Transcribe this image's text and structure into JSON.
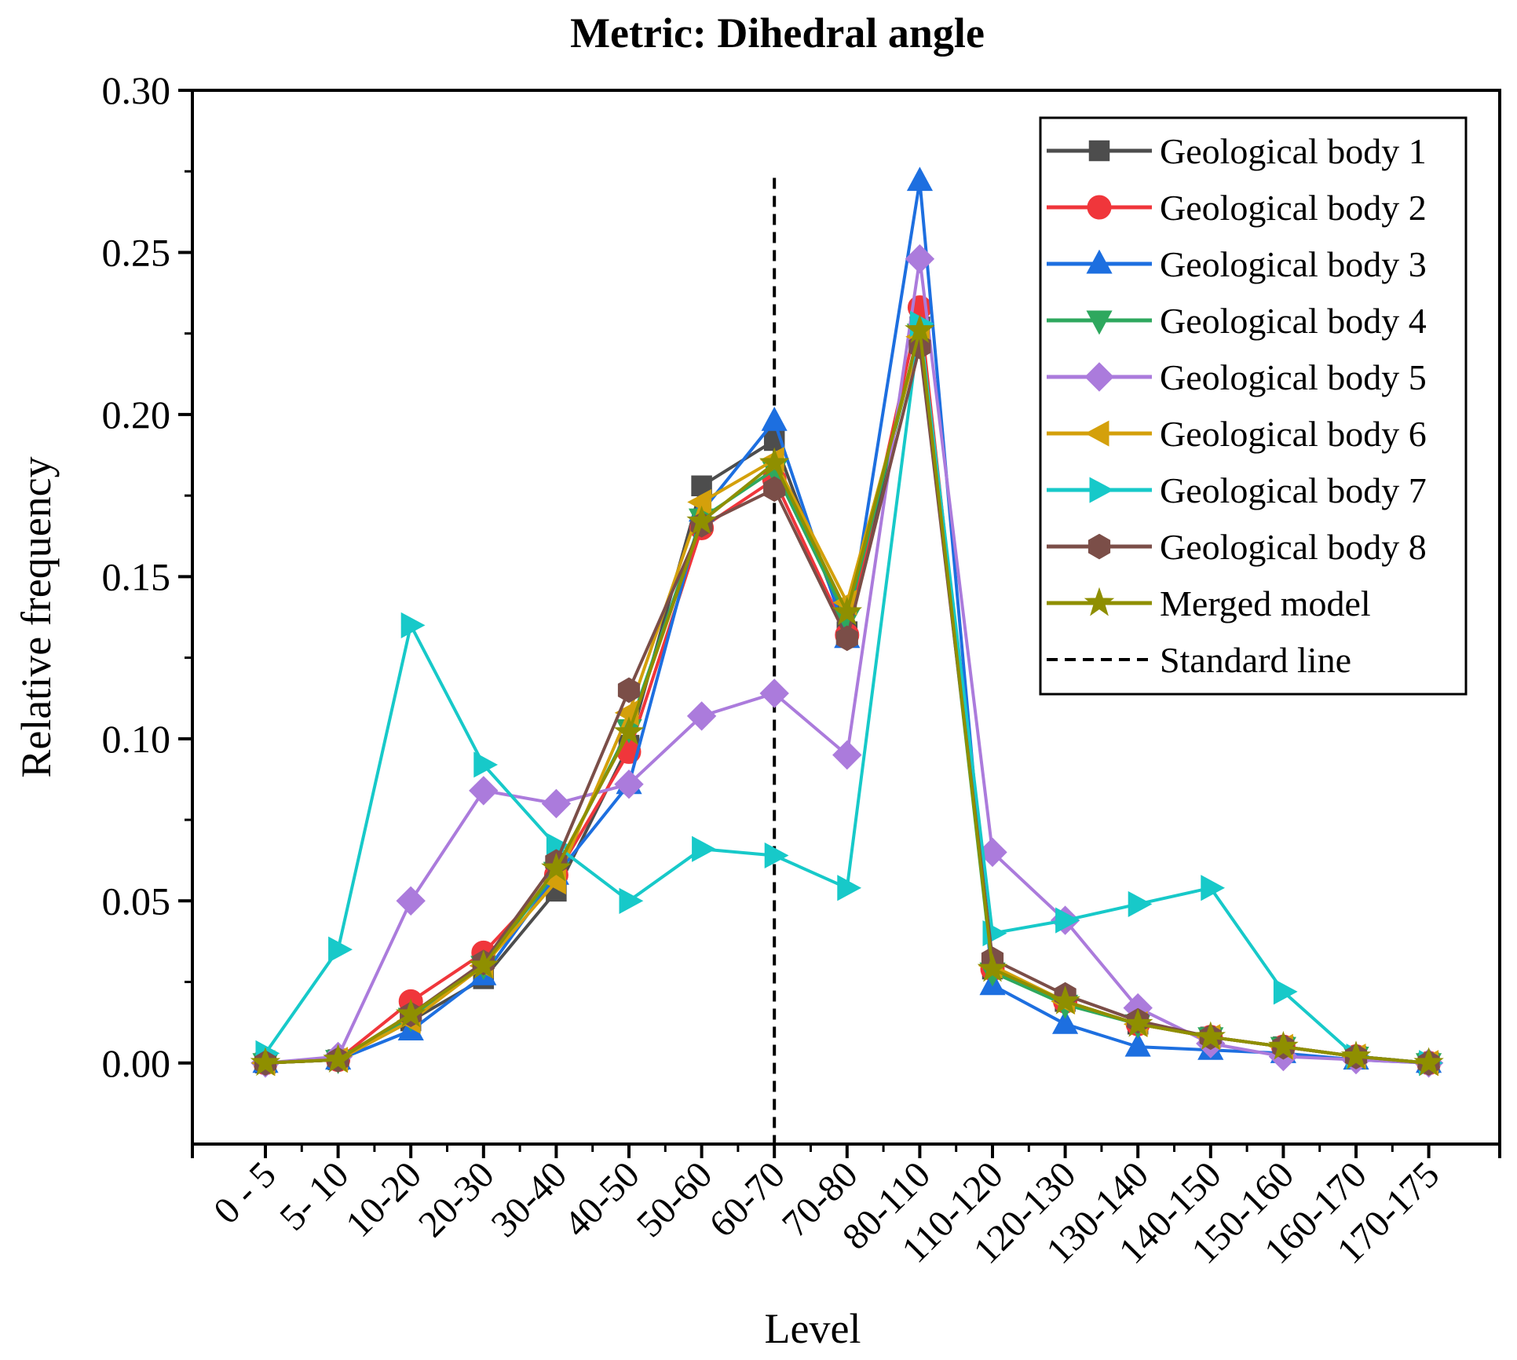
{
  "chart_data": {
    "type": "line",
    "title": "Metric: Dihedral angle",
    "xlabel": "Level",
    "ylabel": "Relative frequency",
    "ylim": [
      -0.025,
      0.3
    ],
    "yticks": [
      "0.00",
      "0.05",
      "0.10",
      "0.15",
      "0.20",
      "0.25",
      "0.30"
    ],
    "grid": false,
    "legend_position": "top-right",
    "categories": [
      "0 - 5",
      "5- 10",
      "10-20",
      "20-30",
      "30-40",
      "40-50",
      "50-60",
      "60-70",
      "70-80",
      "80-110",
      "110-120",
      "120-130",
      "130-140",
      "140-150",
      "150-160",
      "160-170",
      "170-175"
    ],
    "series": [
      {
        "name": "Geological body 1",
        "color": "#4d4d4d",
        "marker": "square",
        "values": [
          0.0,
          0.001,
          0.013,
          0.026,
          0.053,
          0.098,
          0.178,
          0.192,
          0.133,
          0.227,
          0.029,
          0.019,
          0.012,
          0.008,
          0.005,
          0.002,
          0.0
        ]
      },
      {
        "name": "Geological body 2",
        "color": "#f0363b",
        "marker": "circle",
        "values": [
          0.0,
          0.001,
          0.019,
          0.034,
          0.058,
          0.096,
          0.165,
          0.18,
          0.132,
          0.233,
          0.029,
          0.019,
          0.012,
          0.008,
          0.005,
          0.002,
          0.0
        ]
      },
      {
        "name": "Geological body 3",
        "color": "#1d6fe0",
        "marker": "triangle-up",
        "values": [
          0.0,
          0.001,
          0.01,
          0.027,
          0.058,
          0.086,
          0.17,
          0.198,
          0.131,
          0.272,
          0.024,
          0.012,
          0.005,
          0.004,
          0.003,
          0.001,
          0.0
        ]
      },
      {
        "name": "Geological body 4",
        "color": "#2ea85e",
        "marker": "triangle-down",
        "values": [
          0.0,
          0.001,
          0.014,
          0.03,
          0.059,
          0.103,
          0.168,
          0.183,
          0.137,
          0.225,
          0.028,
          0.018,
          0.012,
          0.008,
          0.005,
          0.002,
          0.0
        ]
      },
      {
        "name": "Geological body 5",
        "color": "#ab7bdc",
        "marker": "diamond",
        "values": [
          0.0,
          0.002,
          0.05,
          0.084,
          0.08,
          0.086,
          0.107,
          0.114,
          0.095,
          0.248,
          0.065,
          0.044,
          0.017,
          0.006,
          0.002,
          0.001,
          0.0
        ]
      },
      {
        "name": "Geological body 6",
        "color": "#d4a00b",
        "marker": "triangle-left",
        "values": [
          0.0,
          0.001,
          0.013,
          0.03,
          0.056,
          0.108,
          0.173,
          0.186,
          0.142,
          0.224,
          0.03,
          0.019,
          0.012,
          0.008,
          0.005,
          0.002,
          0.0
        ]
      },
      {
        "name": "Geological body 7",
        "color": "#17c9c9",
        "marker": "triangle-right",
        "values": [
          0.003,
          0.035,
          0.135,
          0.092,
          0.067,
          0.05,
          0.066,
          0.064,
          0.054,
          0.228,
          0.04,
          0.044,
          0.049,
          0.054,
          0.022,
          0.002,
          0.0
        ]
      },
      {
        "name": "Geological body 8",
        "color": "#7b4e48",
        "marker": "hexagon",
        "values": [
          0.0,
          0.001,
          0.015,
          0.031,
          0.062,
          0.115,
          0.166,
          0.177,
          0.131,
          0.221,
          0.032,
          0.021,
          0.013,
          0.008,
          0.005,
          0.002,
          0.0
        ]
      },
      {
        "name": "Merged model",
        "color": "#8f8f00",
        "marker": "star",
        "values": [
          0.0,
          0.001,
          0.015,
          0.03,
          0.06,
          0.102,
          0.167,
          0.185,
          0.139,
          0.226,
          0.029,
          0.019,
          0.012,
          0.008,
          0.005,
          0.002,
          0.0
        ]
      }
    ],
    "standard_line": {
      "name": "Standard line",
      "category": "60-70",
      "y_range": [
        -0.025,
        0.273
      ],
      "color": "#000000",
      "style": "dashed"
    }
  }
}
